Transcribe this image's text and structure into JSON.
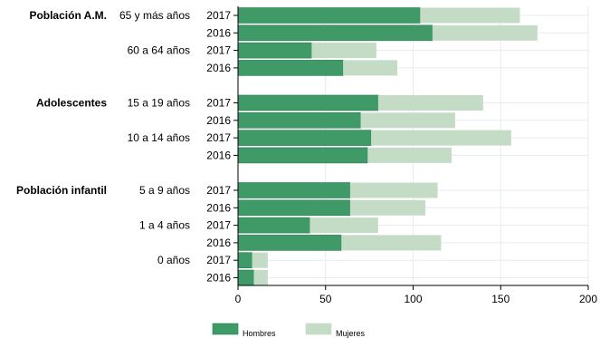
{
  "chart_data": {
    "type": "bar",
    "orientation": "horizontal",
    "stacked": true,
    "xlim": [
      0,
      200
    ],
    "xticks": [
      0,
      50,
      100,
      150,
      200
    ],
    "grid": true,
    "legend_position": "bottom",
    "colors": {
      "hombres": "#3f9a68",
      "mujeres": "#c4dcc6",
      "hombres_stroke": "#2a7d50"
    },
    "series": [
      {
        "name": "Hombres"
      },
      {
        "name": "Mujeres"
      }
    ],
    "groups": [
      {
        "label": "Población A.M.",
        "categories": [
          {
            "label": "65 y más años",
            "rows": [
              {
                "year": "2017",
                "hombres": 104,
                "mujeres": 57
              },
              {
                "year": "2016",
                "hombres": 111,
                "mujeres": 60
              }
            ]
          },
          {
            "label": "60 a 64 años",
            "rows": [
              {
                "year": "2017",
                "hombres": 42,
                "mujeres": 37
              },
              {
                "year": "2016",
                "hombres": 60,
                "mujeres": 31
              }
            ]
          }
        ]
      },
      {
        "label": "Adolescentes",
        "categories": [
          {
            "label": "15 a 19 años",
            "rows": [
              {
                "year": "2017",
                "hombres": 80,
                "mujeres": 60
              },
              {
                "year": "2016",
                "hombres": 70,
                "mujeres": 54
              }
            ]
          },
          {
            "label": "10 a 14 años",
            "rows": [
              {
                "year": "2017",
                "hombres": 76,
                "mujeres": 80
              },
              {
                "year": "2016",
                "hombres": 74,
                "mujeres": 48
              }
            ]
          }
        ]
      },
      {
        "label": "Población infantil",
        "categories": [
          {
            "label": "5 a 9 años",
            "rows": [
              {
                "year": "2017",
                "hombres": 64,
                "mujeres": 50
              },
              {
                "year": "2016",
                "hombres": 64,
                "mujeres": 43
              }
            ]
          },
          {
            "label": "1 a 4 años",
            "rows": [
              {
                "year": "2017",
                "hombres": 41,
                "mujeres": 39
              },
              {
                "year": "2016",
                "hombres": 59,
                "mujeres": 57
              }
            ]
          },
          {
            "label": "0 años",
            "rows": [
              {
                "year": "2017",
                "hombres": 8,
                "mujeres": 9
              },
              {
                "year": "2016",
                "hombres": 9,
                "mujeres": 8
              }
            ]
          }
        ]
      }
    ]
  }
}
